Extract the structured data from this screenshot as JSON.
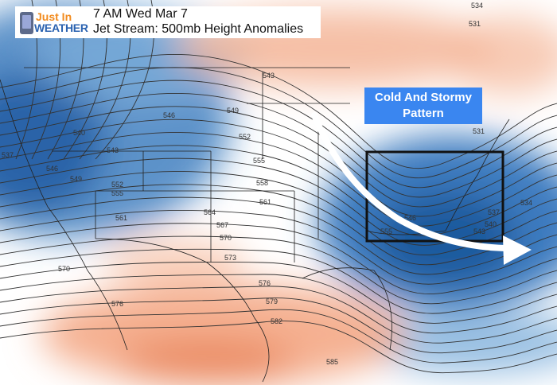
{
  "logo": {
    "line1": "Just In",
    "line2": "WEATHER"
  },
  "header": {
    "time": "7 AM Wed Mar 7",
    "title": "Jet Stream: 500mb Height Anomalies"
  },
  "callout": {
    "line1": "Cold And Stormy",
    "line2": "Pattern"
  },
  "colors": {
    "cold_anomaly": "#2f6fb0",
    "warm_anomaly": "#f3a27e",
    "callout_bg": "#3a86f0",
    "arrow": "#ffffff",
    "focus_box": "#111111"
  },
  "contour_labels": [
    "543",
    "546",
    "549",
    "552",
    "540",
    "543",
    "546",
    "549",
    "552",
    "555",
    "555",
    "558",
    "561",
    "561",
    "564",
    "567",
    "570",
    "573",
    "570",
    "576",
    "576",
    "579",
    "582",
    "585",
    "531",
    "534",
    "537",
    "531",
    "546",
    "555",
    "537",
    "540",
    "543",
    "534"
  ]
}
